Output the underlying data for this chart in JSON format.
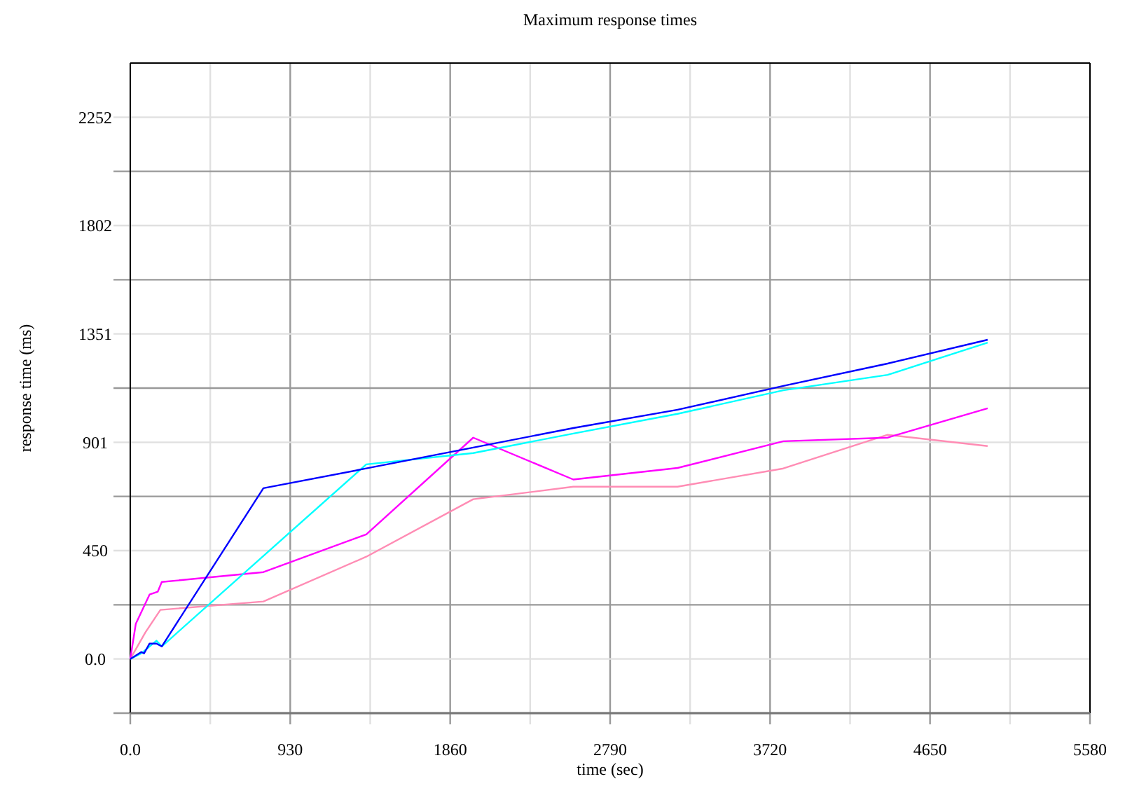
{
  "chart_data": {
    "type": "line",
    "title": "Maximum response times",
    "xlabel": "time (sec)",
    "ylabel": "response time (ms)",
    "xlim": [
      0,
      5580
    ],
    "ylim": [
      -225.2,
      2477.2
    ],
    "xticks": [
      {
        "value": 0,
        "label": "0.0"
      },
      {
        "value": 465,
        "label": null
      },
      930,
      {
        "value": 1395,
        "label": null
      },
      1860,
      {
        "value": 2325,
        "label": null
      },
      2790,
      {
        "value": 3255,
        "label": null
      },
      3720,
      {
        "value": 4185,
        "label": null
      },
      4650,
      {
        "value": 5115,
        "label": null
      },
      5580
    ],
    "yticks": [
      {
        "value": -225.2,
        "label": null
      },
      {
        "value": 0,
        "label": "0.0"
      },
      {
        "value": 225.2,
        "label": null
      },
      {
        "value": 450.4,
        "label": "450"
      },
      {
        "value": 675.6,
        "label": null
      },
      {
        "value": 900.8,
        "label": "901"
      },
      {
        "value": 1126,
        "label": null
      },
      {
        "value": 1351.2,
        "label": "1351"
      },
      {
        "value": 1576.4,
        "label": null
      },
      {
        "value": 1801.6,
        "label": "1802"
      },
      {
        "value": 2026.8,
        "label": null
      },
      {
        "value": 2252,
        "label": "2252"
      }
    ],
    "grid": true,
    "series": [
      {
        "color": "#ff8cb4",
        "x": [
          0,
          88,
          175,
          774,
          1372,
          1994,
          2576,
          3182,
          3797,
          4403,
          4985
        ],
        "values": [
          0,
          111,
          204,
          239,
          425,
          664,
          716,
          716,
          792,
          932,
          885
        ]
      },
      {
        "color": "#ff00ff",
        "x": [
          0,
          32,
          112,
          160,
          183,
          774,
          1372,
          1994,
          2576,
          3182,
          3797,
          4403,
          4985
        ],
        "values": [
          0,
          146,
          268,
          280,
          320,
          361,
          518,
          920,
          746,
          794,
          905,
          920,
          1042
        ]
      },
      {
        "color": "#00ffff",
        "x": [
          0,
          64,
          112,
          152,
          183,
          1372,
          1994,
          2576,
          3182,
          3797,
          4403,
          4985
        ],
        "values": [
          0,
          23,
          52,
          76,
          52,
          809,
          856,
          937,
          1019,
          1117,
          1181,
          1315
        ]
      },
      {
        "color": "#0000ff",
        "x": [
          0,
          64,
          80,
          112,
          152,
          183,
          774,
          1372,
          1994,
          2576,
          3182,
          3797,
          4403,
          4985
        ],
        "values": [
          0,
          29,
          23,
          64,
          64,
          52,
          710,
          792,
          879,
          960,
          1036,
          1135,
          1228,
          1327
        ]
      }
    ]
  }
}
